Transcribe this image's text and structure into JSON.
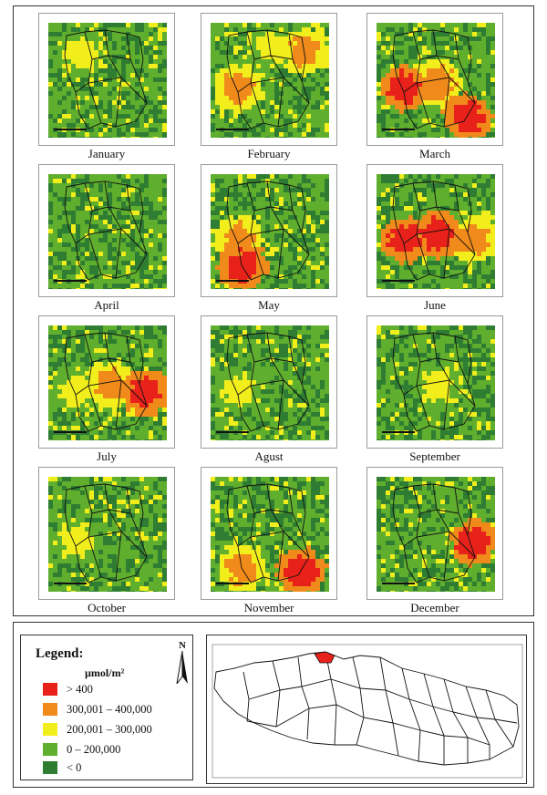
{
  "months": [
    "January",
    "February",
    "March",
    "April",
    "May",
    "June",
    "July",
    "Agust",
    "September",
    "October",
    "November",
    "December"
  ],
  "legend": {
    "title": "Legend:",
    "unit": "µmol/m²",
    "north_label": "N",
    "classes": [
      {
        "label": "> 400",
        "color": "#e8211a"
      },
      {
        "label": "300,001 – 400,000",
        "color": "#f08a1a"
      },
      {
        "label": "200,001 – 300,000",
        "color": "#f2ee1c"
      },
      {
        "label": "0 – 200,000",
        "color": "#5fae2e"
      },
      {
        "label": "< 0",
        "color": "#2f7d32"
      }
    ]
  },
  "hotspots": [
    [
      {
        "cls": 2,
        "pos": "top-left"
      }
    ],
    [
      {
        "cls": 1,
        "pos": "left"
      },
      {
        "cls": 2,
        "pos": "top"
      },
      {
        "cls": 1,
        "pos": "top-right"
      }
    ],
    [
      {
        "cls": 0,
        "pos": "left"
      },
      {
        "cls": 0,
        "pos": "bottom-right"
      },
      {
        "cls": 1,
        "pos": "center"
      }
    ],
    [],
    [
      {
        "cls": 0,
        "pos": "bottom-left"
      },
      {
        "cls": 1,
        "pos": "left"
      }
    ],
    [
      {
        "cls": 0,
        "pos": "left"
      },
      {
        "cls": 0,
        "pos": "center"
      },
      {
        "cls": 1,
        "pos": "right"
      }
    ],
    [
      {
        "cls": 0,
        "pos": "right"
      },
      {
        "cls": 1,
        "pos": "center"
      },
      {
        "cls": 2,
        "pos": "left"
      }
    ],
    [
      {
        "cls": 2,
        "pos": "left"
      }
    ],
    [
      {
        "cls": 2,
        "pos": "center"
      }
    ],
    [
      {
        "cls": 2,
        "pos": "left"
      }
    ],
    [
      {
        "cls": 0,
        "pos": "bottom-right"
      },
      {
        "cls": 1,
        "pos": "bottom-left"
      }
    ],
    [
      {
        "cls": 2,
        "pos": "right"
      },
      {
        "cls": 0,
        "pos": "right"
      }
    ]
  ]
}
